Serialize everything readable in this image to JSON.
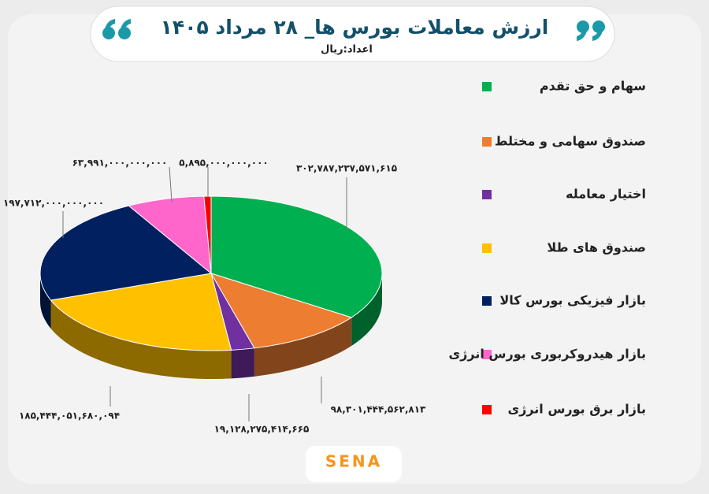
{
  "chart_data": {
    "type": "pie3d",
    "title": "ارزش معاملات بورس ها_ ۲۸ مرداد ۱۴۰۵",
    "subtitle": "اعداد:ریال",
    "categories": [
      "سهام و حق تقدم",
      "صندوق سهامی و مختلط",
      "اختیار معامله",
      "صندوق های طلا",
      "بازار فیزیکی بورس کالا",
      "بازار هیدروکربوری بورس انرژی",
      "بازار برق بورس انرژی"
    ],
    "values": [
      302787237571615,
      98301444562813,
      19128275414665,
      185444051680094,
      197712000000000,
      63991000000000,
      5895000000000
    ],
    "value_labels": [
      "۳۰۲,۷۸۷,۲۳۷,۵۷۱,۶۱۵",
      "۹۸,۳۰۱,۴۴۴,۵۶۲,۸۱۳",
      "۱۹,۱۲۸,۲۷۵,۴۱۴,۶۶۵",
      "۱۸۵,۴۴۴,۰۵۱,۶۸۰,۰۹۴",
      "۱۹۷,۷۱۲,۰۰۰,۰۰۰,۰۰۰",
      "۶۳,۹۹۱,۰۰۰,۰۰۰,۰۰۰",
      "۵,۸۹۵,۰۰۰,۰۰۰,۰۰۰"
    ],
    "colors": [
      "#00b050",
      "#ed7d31",
      "#7030a0",
      "#ffc000",
      "#002060",
      "#ff66cc",
      "#ff0000"
    ]
  },
  "logo": "SENA"
}
